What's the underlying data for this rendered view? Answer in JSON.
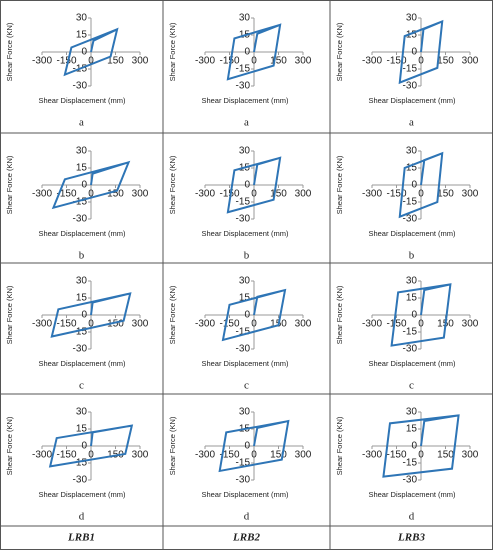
{
  "columns": [
    "LRB1",
    "LRB2",
    "LRB3"
  ],
  "chart_data": [
    {
      "type": "line",
      "y_label": "Shear Force (KN)",
      "x_label": "Shear Displacement (mm)",
      "caption": "a",
      "xlim": [
        -300,
        300
      ],
      "ylim": [
        -30,
        30
      ],
      "xticks": [
        -300,
        -150,
        0,
        150,
        300
      ],
      "yticks": [
        -30,
        -15,
        0,
        15,
        30
      ],
      "series": [
        {
          "color": "#2e75b6",
          "x": [
            0,
            15,
            160,
            120,
            -160,
            -120,
            160
          ],
          "values": [
            0,
            10,
            20,
            -4,
            -20,
            4,
            20
          ]
        }
      ]
    },
    {
      "type": "line",
      "y_label": "Shear Force (KN)",
      "x_label": "Shear Displacement (mm)",
      "caption": "a",
      "xlim": [
        -300,
        300
      ],
      "ylim": [
        -30,
        30
      ],
      "xticks": [
        -300,
        -150,
        0,
        150,
        300
      ],
      "yticks": [
        -30,
        -15,
        0,
        15,
        30
      ],
      "series": [
        {
          "color": "#2e75b6",
          "x": [
            0,
            20,
            160,
            120,
            -160,
            -120,
            160
          ],
          "values": [
            0,
            16,
            24,
            -12,
            -24,
            12,
            24
          ]
        }
      ]
    },
    {
      "type": "line",
      "y_label": "Shear Force (KN)",
      "x_label": "Shear Displacement (mm)",
      "caption": "a",
      "xlim": [
        -300,
        300
      ],
      "ylim": [
        -30,
        30
      ],
      "xticks": [
        -300,
        -150,
        0,
        150,
        300
      ],
      "yticks": [
        -30,
        -15,
        0,
        15,
        30
      ],
      "series": [
        {
          "color": "#2e75b6",
          "x": [
            0,
            15,
            130,
            100,
            -130,
            -100,
            130
          ],
          "values": [
            0,
            20,
            27,
            -14,
            -27,
            14,
            27
          ]
        }
      ]
    },
    {
      "type": "line",
      "y_label": "Shear Force (KN)",
      "x_label": "Shear Displacement (mm)",
      "caption": "b",
      "xlim": [
        -300,
        300
      ],
      "ylim": [
        -30,
        30
      ],
      "xticks": [
        -300,
        -150,
        0,
        150,
        300
      ],
      "yticks": [
        -30,
        -15,
        0,
        15,
        30
      ],
      "series": [
        {
          "color": "#2e75b6",
          "x": [
            0,
            10,
            230,
            160,
            -230,
            -160,
            230
          ],
          "values": [
            0,
            10,
            20,
            -5,
            -20,
            5,
            20
          ]
        }
      ]
    },
    {
      "type": "line",
      "y_label": "Shear Force (KN)",
      "x_label": "Shear Displacement (mm)",
      "caption": "b",
      "xlim": [
        -300,
        300
      ],
      "ylim": [
        -30,
        30
      ],
      "xticks": [
        -300,
        -150,
        0,
        150,
        300
      ],
      "yticks": [
        -30,
        -15,
        0,
        15,
        30
      ],
      "series": [
        {
          "color": "#2e75b6",
          "x": [
            0,
            20,
            160,
            120,
            -160,
            -120,
            160
          ],
          "values": [
            0,
            18,
            24,
            -13,
            -24,
            13,
            24
          ]
        }
      ]
    },
    {
      "type": "line",
      "y_label": "Shear Force (KN)",
      "x_label": "Shear Displacement (mm)",
      "caption": "b",
      "xlim": [
        -300,
        300
      ],
      "ylim": [
        -30,
        30
      ],
      "xticks": [
        -300,
        -150,
        0,
        150,
        300
      ],
      "yticks": [
        -30,
        -15,
        0,
        15,
        30
      ],
      "series": [
        {
          "color": "#2e75b6",
          "x": [
            0,
            20,
            130,
            100,
            -130,
            -100,
            130
          ],
          "values": [
            0,
            22,
            28,
            -15,
            -28,
            15,
            28
          ]
        }
      ]
    },
    {
      "type": "line",
      "y_label": "Shear Force (KN)",
      "x_label": "Shear Displacement (mm)",
      "caption": "c",
      "xlim": [
        -300,
        300
      ],
      "ylim": [
        -30,
        30
      ],
      "xticks": [
        -300,
        -150,
        0,
        150,
        300
      ],
      "yticks": [
        -30,
        -15,
        0,
        15,
        30
      ],
      "series": [
        {
          "color": "#2e75b6",
          "x": [
            0,
            10,
            240,
            200,
            -240,
            -200,
            240
          ],
          "values": [
            0,
            11,
            19,
            -5,
            -19,
            5,
            19
          ]
        }
      ]
    },
    {
      "type": "line",
      "y_label": "Shear Force (KN)",
      "x_label": "Shear Displacement (mm)",
      "caption": "c",
      "xlim": [
        -300,
        300
      ],
      "ylim": [
        -30,
        30
      ],
      "xticks": [
        -300,
        -150,
        0,
        150,
        300
      ],
      "yticks": [
        -30,
        -15,
        0,
        15,
        30
      ],
      "series": [
        {
          "color": "#2e75b6",
          "x": [
            0,
            20,
            190,
            150,
            -190,
            -150,
            190
          ],
          "values": [
            0,
            16,
            22,
            -9,
            -22,
            9,
            22
          ]
        }
      ]
    },
    {
      "type": "line",
      "y_label": "Shear Force (KN)",
      "x_label": "Shear Displacement (mm)",
      "caption": "c",
      "xlim": [
        -300,
        300
      ],
      "ylim": [
        -30,
        30
      ],
      "xticks": [
        -300,
        -150,
        0,
        150,
        300
      ],
      "yticks": [
        -30,
        -15,
        0,
        15,
        30
      ],
      "series": [
        {
          "color": "#2e75b6",
          "x": [
            0,
            20,
            180,
            140,
            -180,
            -140,
            180
          ],
          "values": [
            0,
            22,
            27,
            -20,
            -27,
            20,
            27
          ]
        }
      ]
    },
    {
      "type": "line",
      "y_label": "Shear Force (KN)",
      "x_label": "Shear Displacement (mm)",
      "caption": "d",
      "xlim": [
        -300,
        300
      ],
      "ylim": [
        -30,
        30
      ],
      "xticks": [
        -300,
        -150,
        0,
        150,
        300
      ],
      "yticks": [
        -30,
        -15,
        0,
        15,
        30
      ],
      "series": [
        {
          "color": "#2e75b6",
          "x": [
            0,
            10,
            250,
            210,
            -250,
            -210,
            250
          ],
          "values": [
            0,
            12,
            18,
            -7,
            -18,
            7,
            18
          ]
        }
      ]
    },
    {
      "type": "line",
      "y_label": "Shear Force (KN)",
      "x_label": "Shear Displacement (mm)",
      "caption": "d",
      "xlim": [
        -300,
        300
      ],
      "ylim": [
        -30,
        30
      ],
      "xticks": [
        -300,
        -150,
        0,
        150,
        300
      ],
      "yticks": [
        -30,
        -15,
        0,
        15,
        30
      ],
      "series": [
        {
          "color": "#2e75b6",
          "x": [
            0,
            20,
            210,
            170,
            -210,
            -170,
            210
          ],
          "values": [
            0,
            16,
            22,
            -12,
            -22,
            12,
            22
          ]
        }
      ]
    },
    {
      "type": "line",
      "y_label": "Shear Force (KN)",
      "x_label": "Shear Displacement (mm)",
      "caption": "d",
      "xlim": [
        -300,
        300
      ],
      "ylim": [
        -30,
        30
      ],
      "xticks": [
        -300,
        -150,
        0,
        150,
        300
      ],
      "yticks": [
        -30,
        -15,
        0,
        15,
        30
      ],
      "series": [
        {
          "color": "#2e75b6",
          "x": [
            0,
            20,
            230,
            190,
            -230,
            -190,
            230
          ],
          "values": [
            0,
            22,
            27,
            -20,
            -27,
            20,
            27
          ]
        }
      ]
    }
  ]
}
